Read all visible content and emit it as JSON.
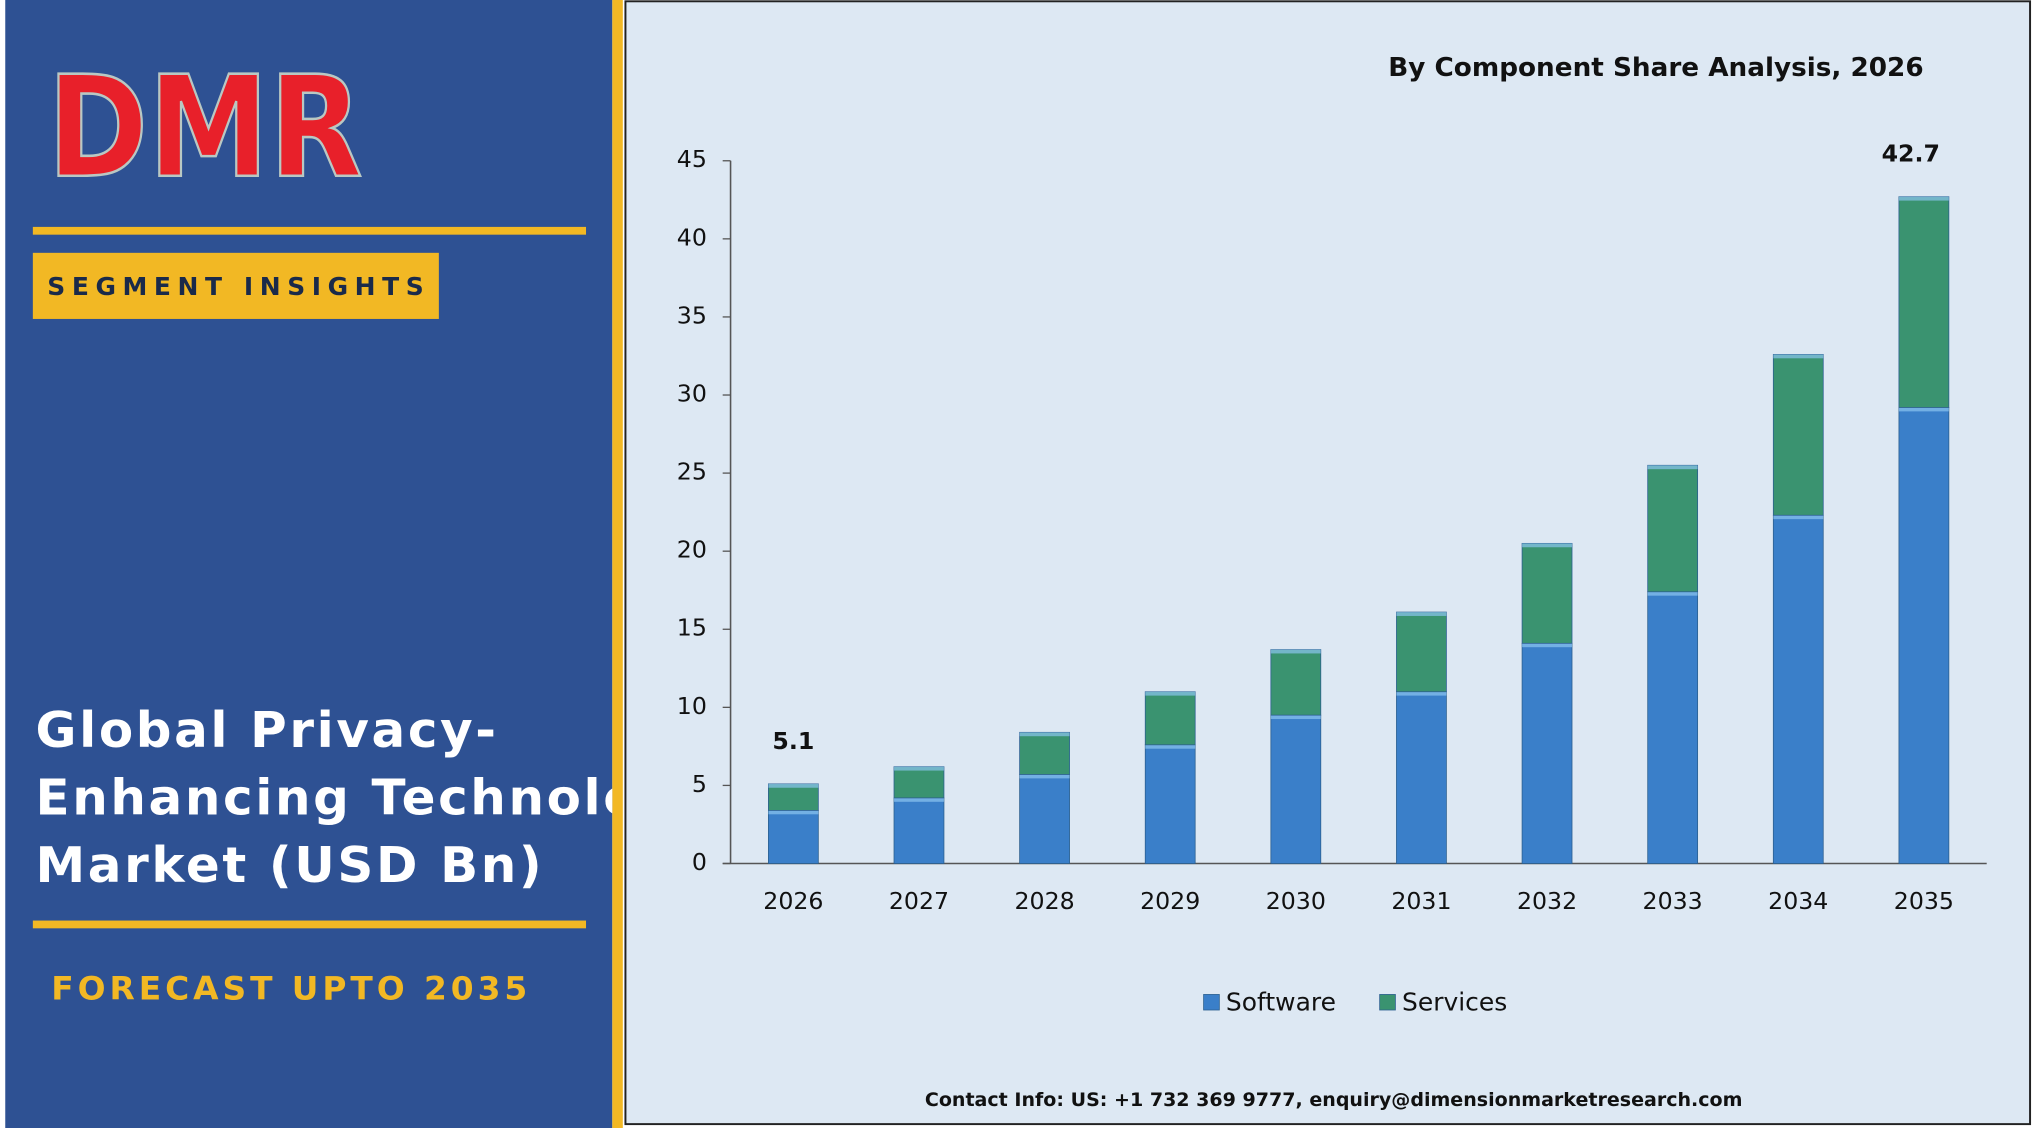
{
  "logo": "DMR",
  "segment_label": "SEGMENT INSIGHTS",
  "title_lines": [
    "Global Privacy-",
    "Enhancing Technology",
    "Market (USD Bn)"
  ],
  "forecast": "FORECAST UPTO 2035",
  "contact": "Contact Info: US: +1 732 369 9777, enquiry@dimensionmarketresearch.com",
  "chart_data": {
    "type": "stacked_bar",
    "title": "By Component Share Analysis, 2026",
    "categories": [
      "2026",
      "2027",
      "2028",
      "2029",
      "2030",
      "2031",
      "2032",
      "2033",
      "2034",
      "2035"
    ],
    "series": [
      {
        "name": "Software",
        "color": "#3a7fc9",
        "values": [
          3.4,
          4.2,
          5.7,
          7.6,
          9.5,
          11.0,
          14.1,
          17.4,
          22.3,
          29.2
        ]
      },
      {
        "name": "Services",
        "color": "#3a9370",
        "values": [
          1.7,
          2.0,
          2.7,
          3.4,
          4.2,
          5.1,
          6.4,
          8.1,
          10.3,
          13.5
        ]
      }
    ],
    "total_labels": [
      "5.1",
      "42.7"
    ],
    "ylim": [
      0,
      45
    ],
    "yticks": [
      0,
      5,
      10,
      15,
      20,
      25,
      30,
      35,
      40,
      45
    ],
    "legend": "bottom"
  }
}
